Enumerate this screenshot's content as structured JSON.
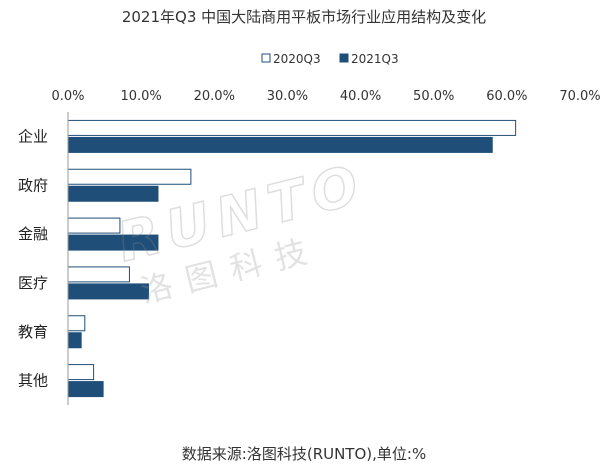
{
  "chart_data": {
    "type": "bar",
    "orientation": "horizontal",
    "title": "2021年Q3 中国大陆商用平板市场行业应用结构及变化",
    "categories": [
      "企业",
      "政府",
      "金融",
      "医疗",
      "教育",
      "其他"
    ],
    "series": [
      {
        "name": "2020Q3",
        "values": [
          61.2,
          16.8,
          7.1,
          8.4,
          2.3,
          3.5
        ],
        "color": "#ffffff",
        "stroke": "#1f4e79"
      },
      {
        "name": "2021Q3",
        "values": [
          58.0,
          12.3,
          12.3,
          11.0,
          1.8,
          4.8
        ],
        "color": "#1f4e79",
        "stroke": "#1f4e79"
      }
    ],
    "xlim": [
      0,
      70
    ],
    "xticks": [
      "0.0%",
      "10.0%",
      "20.0%",
      "30.0%",
      "40.0%",
      "50.0%",
      "60.0%",
      "70.0%"
    ],
    "xaxis_position": "top",
    "legend_position": "top-center",
    "grid": false,
    "source": "数据来源:洛图科技(RUNTO),单位:%",
    "watermark": {
      "latin": "RUNTO",
      "cjk": "洛图科技"
    }
  }
}
